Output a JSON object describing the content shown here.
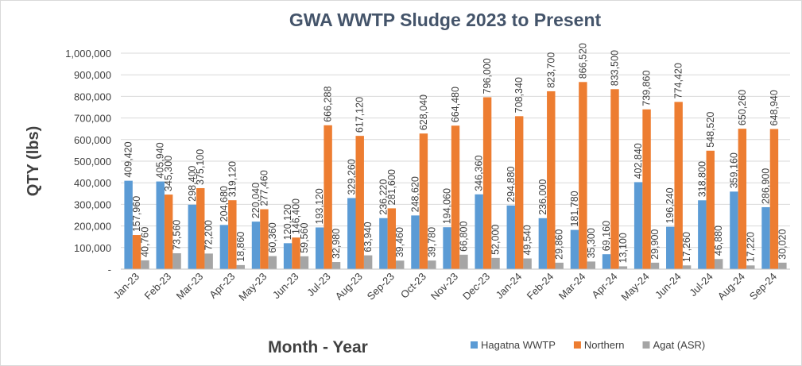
{
  "chart_data": {
    "type": "bar",
    "title": "GWA WWTP Sludge 2023 to Present",
    "x_label": "Month  - Year",
    "y_label": "QTY (lbs)",
    "categories": [
      "Jan-23",
      "Feb-23",
      "Mar-23",
      "Apr-23",
      "May-23",
      "Jun-23",
      "Jul-23",
      "Aug-23",
      "Sep-23",
      "Oct-23",
      "Nov-23",
      "Dec-23",
      "Jan-24",
      "Feb-24",
      "Mar-24",
      "Apr-24",
      "May-24",
      "Jun-24",
      "Jul-24",
      "Aug-24",
      "Sep-24"
    ],
    "series": [
      {
        "name": "Hagatna WWTP",
        "color": "#5b9bd5",
        "values": [
          409420,
          405940,
          298400,
          204680,
          220040,
          120120,
          193120,
          329260,
          236220,
          248620,
          194060,
          346360,
          294880,
          236000,
          181780,
          69160,
          402840,
          196240,
          318800,
          359160,
          286900
        ],
        "value_labels": [
          "409,420",
          "405,940",
          "298,400",
          "204,680",
          "220,040",
          "120,120",
          "193,120",
          "329,260",
          "236,220",
          "248,620",
          "194,060",
          "346,360",
          "294,880",
          "236,000",
          "181,780",
          "69,160",
          "402,840",
          "196,240",
          "318,800",
          "359,160",
          "286,900"
        ]
      },
      {
        "name": "Northern",
        "color": "#ed7d31",
        "values": [
          157960,
          345300,
          375100,
          319120,
          277460,
          146400,
          666288,
          617120,
          281600,
          628040,
          664480,
          796000,
          708340,
          823700,
          866520,
          833500,
          739860,
          774420,
          548520,
          650260,
          648940
        ],
        "value_labels": [
          "157,960",
          "345,300",
          "375,100",
          "319,120",
          "277,460",
          "146,400",
          "666,288",
          "617,120",
          "281,600",
          "628,040",
          "664,480",
          "796,000",
          "708,340",
          "823,700",
          "866,520",
          "833,500",
          "739,860",
          "774,420",
          "548,520",
          "650,260",
          "648,940"
        ]
      },
      {
        "name": "Agat (ASR)",
        "color": "#a5a5a5",
        "values": [
          40760,
          73560,
          72200,
          18860,
          60360,
          59560,
          32980,
          63940,
          39460,
          39780,
          66800,
          52000,
          49540,
          29860,
          35300,
          13100,
          29900,
          17260,
          46880,
          17220,
          30020
        ],
        "value_labels": [
          "40,760",
          "73,560",
          "72,200",
          "18,860",
          "60,360",
          "59,560",
          "32,980",
          "63,940",
          "39,460",
          "39,780",
          "66,800",
          "52,000",
          "49,540",
          "29,860",
          "35,300",
          "13,100",
          "29,900",
          "17,260",
          "46,880",
          "17,220",
          "30,020"
        ]
      }
    ],
    "ylim": [
      0,
      1000000
    ],
    "yticks": [
      {
        "value": 0,
        "label": "-"
      },
      {
        "value": 100000,
        "label": "100,000"
      },
      {
        "value": 200000,
        "label": "200,000"
      },
      {
        "value": 300000,
        "label": "300,000"
      },
      {
        "value": 400000,
        "label": "400,000"
      },
      {
        "value": 500000,
        "label": "500,000"
      },
      {
        "value": 600000,
        "label": "600,000"
      },
      {
        "value": 700000,
        "label": "700,000"
      },
      {
        "value": 800000,
        "label": "800,000"
      },
      {
        "value": 900000,
        "label": "900,000"
      },
      {
        "value": 1000000,
        "label": "1,000,000"
      }
    ],
    "grid": true,
    "legend": "bottom-right"
  }
}
